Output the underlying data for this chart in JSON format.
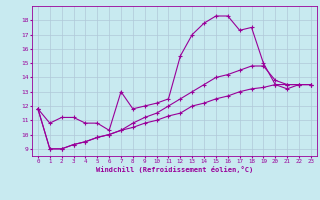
{
  "xlabel": "Windchill (Refroidissement éolien,°C)",
  "bg_color": "#c8eaf0",
  "line_color": "#990099",
  "grid_color": "#b0c8d8",
  "xlim": [
    -0.5,
    23.5
  ],
  "ylim": [
    8.5,
    19.0
  ],
  "xticks": [
    0,
    1,
    2,
    3,
    4,
    5,
    6,
    7,
    8,
    9,
    10,
    11,
    12,
    13,
    14,
    15,
    16,
    17,
    18,
    19,
    20,
    21,
    22,
    23
  ],
  "yticks": [
    9,
    10,
    11,
    12,
    13,
    14,
    15,
    16,
    17,
    18
  ],
  "line1_x": [
    0,
    1,
    2,
    3,
    4,
    5,
    6,
    7,
    8,
    9,
    10,
    11,
    12,
    13,
    14,
    15,
    16,
    17,
    18,
    19,
    20,
    21,
    22,
    23
  ],
  "line1_y": [
    11.8,
    10.8,
    11.2,
    11.2,
    10.8,
    10.8,
    10.3,
    13.0,
    11.8,
    12.0,
    12.2,
    12.5,
    15.5,
    17.0,
    17.8,
    18.3,
    18.3,
    17.3,
    17.5,
    15.0,
    13.5,
    13.2,
    13.5,
    13.5
  ],
  "line2_x": [
    0,
    1,
    2,
    3,
    4,
    5,
    6,
    7,
    8,
    9,
    10,
    11,
    12,
    13,
    14,
    15,
    16,
    17,
    18,
    19,
    20,
    21,
    22,
    23
  ],
  "line2_y": [
    11.8,
    9.0,
    9.0,
    9.3,
    9.5,
    9.8,
    10.0,
    10.3,
    10.5,
    10.8,
    11.0,
    11.3,
    11.5,
    12.0,
    12.2,
    12.5,
    12.7,
    13.0,
    13.2,
    13.3,
    13.5,
    13.5,
    13.5,
    13.5
  ],
  "line3_x": [
    0,
    1,
    2,
    3,
    4,
    5,
    6,
    7,
    8,
    9,
    10,
    11,
    12,
    13,
    14,
    15,
    16,
    17,
    18,
    19,
    20,
    21,
    22,
    23
  ],
  "line3_y": [
    11.8,
    9.0,
    9.0,
    9.3,
    9.5,
    9.8,
    10.0,
    10.3,
    10.8,
    11.2,
    11.5,
    12.0,
    12.5,
    13.0,
    13.5,
    14.0,
    14.2,
    14.5,
    14.8,
    14.8,
    13.8,
    13.5,
    13.5,
    13.5
  ],
  "figsize": [
    3.2,
    2.0
  ],
  "dpi": 100
}
